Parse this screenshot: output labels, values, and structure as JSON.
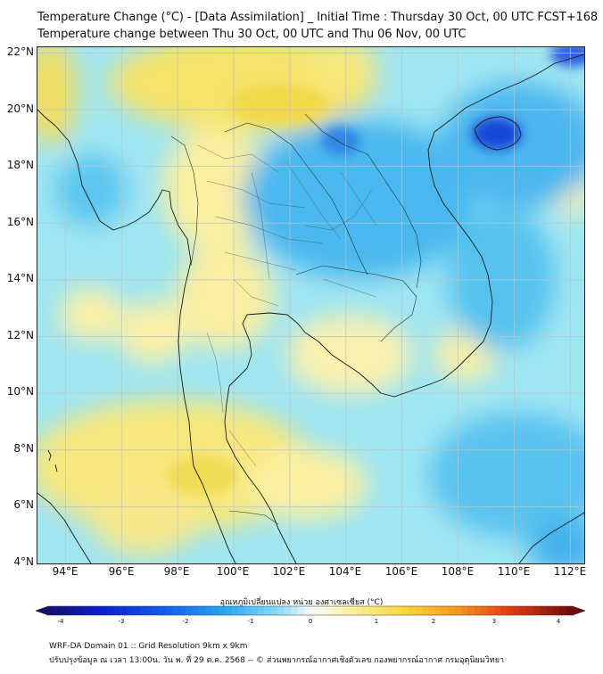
{
  "header": {
    "title_line1": "Temperature Change (°C) - [Data Assimilation] _ Initial Time : Thursday 30 Oct, 00 UTC FCST+168",
    "title_line2": "Temperature change between Thu 30 Oct, 00 UTC and Thu 06 Nov, 00 UTC"
  },
  "map": {
    "lat_labels": [
      "22°N",
      "20°N",
      "18°N",
      "16°N",
      "14°N",
      "12°N",
      "10°N",
      "8°N",
      "6°N",
      "4°N"
    ],
    "lon_labels": [
      "94°E",
      "96°E",
      "98°E",
      "100°E",
      "102°E",
      "104°E",
      "106°E",
      "108°E",
      "110°E",
      "112°E"
    ],
    "lat_range": [
      4,
      22.2
    ],
    "lon_range": [
      93,
      112.5
    ],
    "grid": true,
    "colors": {
      "cold_strong": "#1746d8",
      "cold": "#3aa6ec",
      "cool": "#7ad6f2",
      "neutral": "#e9f7fb",
      "warm_light": "#fbf3a8",
      "warm": "#f6e36a",
      "coastline": "#1a1a1a"
    }
  },
  "colorbar": {
    "title": "อุณหภูมิเปลี่ยนแปลง หน่วย องศาเซลเซียส (°C)",
    "ticks": [
      "-4",
      "-3",
      "-2",
      "-1",
      "0",
      "1",
      "2",
      "3",
      "4"
    ],
    "min": -4,
    "max": 4
  },
  "footer": {
    "line1": "WRF-DA Domain 01 :: Grid Resolution 9km x 9km",
    "line2": "ปรับปรุงข้อมูล ณ เวลา 13:00น. วัน พ. ที่ 29 ต.ค. 2568 -- © ส่วนพยากรณ์อากาศเชิงตัวเลข กองพยากรณ์อากาศ กรมอุตุนิยมวิทยา"
  }
}
